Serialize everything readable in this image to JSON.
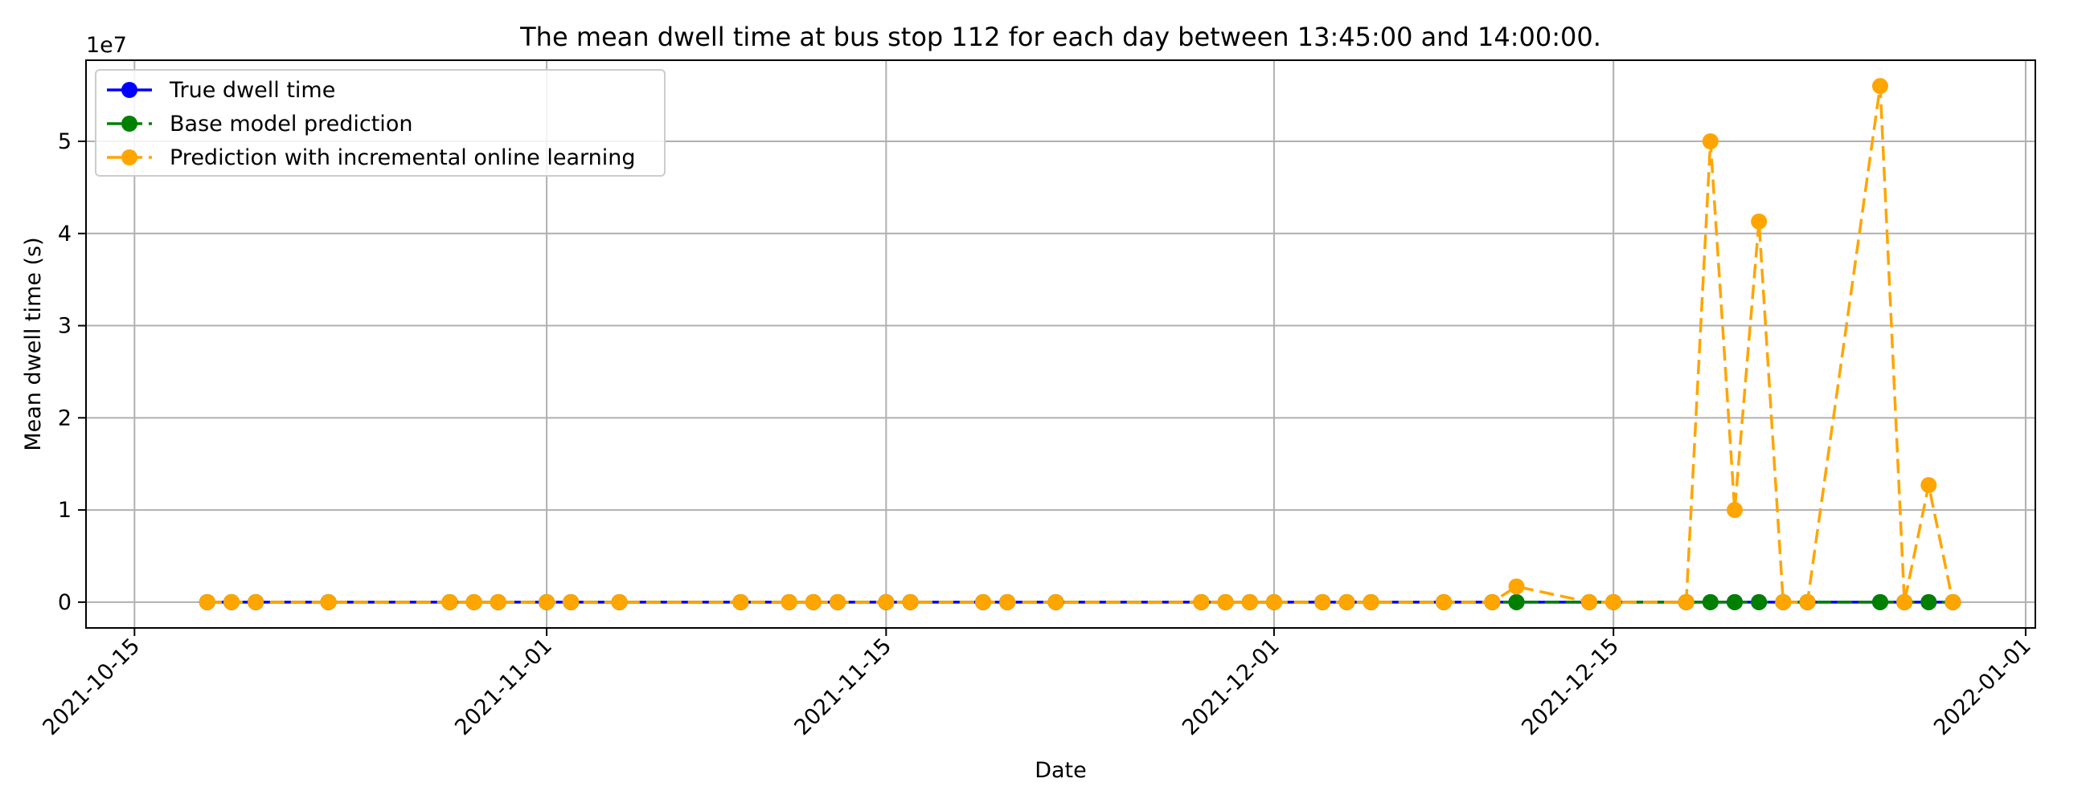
{
  "chart_data": {
    "type": "line",
    "title": "The mean dwell time at bus stop 112 for each day between 13:45:00 and 14:00:00.",
    "xlabel": "Date",
    "ylabel": "Mean dwell time (s)",
    "y_offset_text": "1e7",
    "y_scale_factor": 10000000,
    "xlim": [
      "2021-10-15",
      "2022-01-01"
    ],
    "ylim": [
      -2800000,
      58800000
    ],
    "x_ticks": [
      "2021-10-15",
      "2021-11-01",
      "2021-11-15",
      "2021-12-01",
      "2021-12-15",
      "2022-01-01"
    ],
    "y_ticks": [
      0,
      10000000,
      20000000,
      30000000,
      40000000,
      50000000
    ],
    "y_tick_labels": [
      "0",
      "1",
      "2",
      "3",
      "4",
      "5"
    ],
    "grid": true,
    "legend_position": "upper-left",
    "x": [
      "2021-10-18",
      "2021-10-19",
      "2021-10-20",
      "2021-10-23",
      "2021-10-28",
      "2021-10-29",
      "2021-10-30",
      "2021-11-01",
      "2021-11-02",
      "2021-11-04",
      "2021-11-09",
      "2021-11-11",
      "2021-11-12",
      "2021-11-13",
      "2021-11-15",
      "2021-11-16",
      "2021-11-19",
      "2021-11-20",
      "2021-11-22",
      "2021-11-28",
      "2021-11-29",
      "2021-11-30",
      "2021-12-01",
      "2021-12-03",
      "2021-12-04",
      "2021-12-05",
      "2021-12-08",
      "2021-12-10",
      "2021-12-11",
      "2021-12-14",
      "2021-12-15",
      "2021-12-18",
      "2021-12-19",
      "2021-12-20",
      "2021-12-21",
      "2021-12-22",
      "2021-12-23",
      "2021-12-26",
      "2021-12-27",
      "2021-12-28",
      "2021-12-29"
    ],
    "series": [
      {
        "name": "True dwell time",
        "color": "#0000ff",
        "linestyle": "solid",
        "values": [
          0,
          0,
          0,
          0,
          0,
          0,
          0,
          0,
          0,
          0,
          0,
          0,
          0,
          0,
          0,
          0,
          0,
          0,
          0,
          0,
          0,
          0,
          0,
          0,
          0,
          0,
          0,
          0,
          0,
          0,
          0,
          0,
          0,
          0,
          0,
          0,
          0,
          0,
          0,
          0,
          0
        ]
      },
      {
        "name": "Base model prediction",
        "color": "#008000",
        "linestyle": "dashed",
        "values": [
          0,
          0,
          0,
          0,
          0,
          0,
          0,
          0,
          0,
          0,
          0,
          0,
          0,
          0,
          0,
          0,
          0,
          0,
          0,
          0,
          0,
          0,
          0,
          0,
          0,
          0,
          0,
          0,
          0,
          0,
          0,
          0,
          0,
          0,
          0,
          0,
          0,
          0,
          0,
          0,
          0
        ]
      },
      {
        "name": "Prediction with incremental online learning",
        "color": "#ffa500",
        "linestyle": "dashed",
        "values": [
          0,
          0,
          0,
          0,
          0,
          0,
          0,
          0,
          0,
          0,
          0,
          0,
          0,
          0,
          0,
          0,
          0,
          0,
          0,
          0,
          0,
          0,
          0,
          0,
          0,
          0,
          0,
          0,
          1700000,
          0,
          0,
          0,
          50000000,
          10000000,
          41300000,
          0,
          0,
          56000000,
          0,
          12700000,
          0
        ]
      }
    ]
  }
}
